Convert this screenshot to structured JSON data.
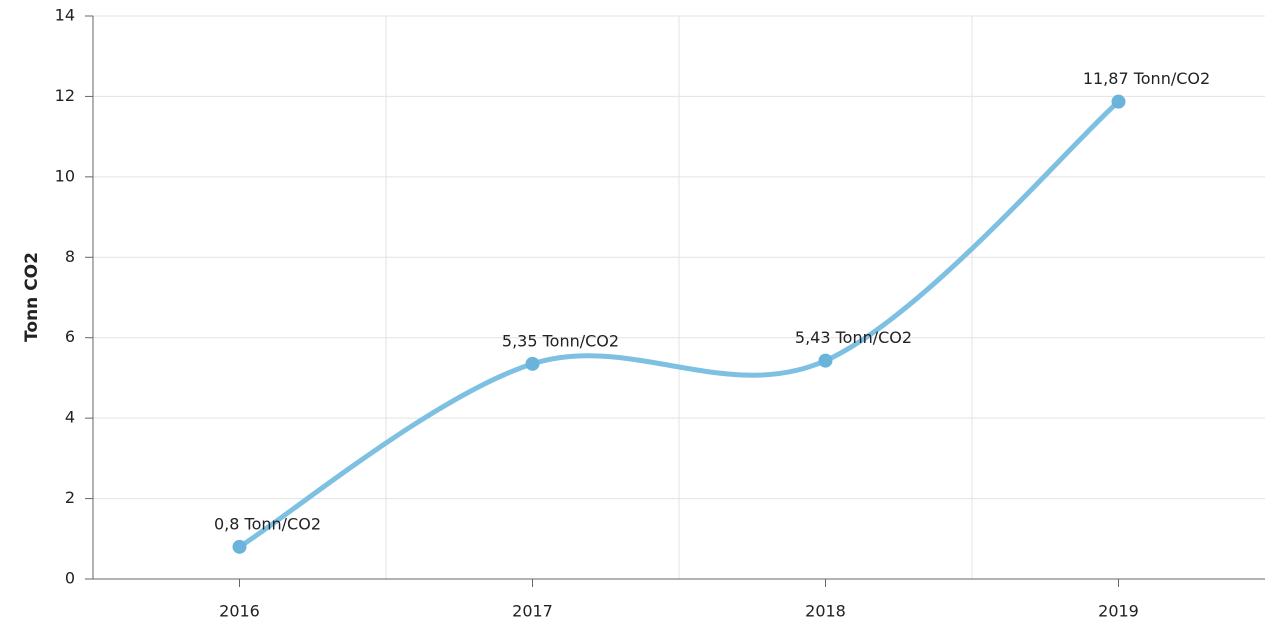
{
  "chart_data": {
    "type": "line",
    "ylabel": "Tonn CO2",
    "categories": [
      "2016",
      "2017",
      "2018",
      "2019"
    ],
    "series": [
      {
        "name": "Tonn CO2",
        "color": "#7ec0e1",
        "values": [
          0.8,
          5.35,
          5.43,
          11.87
        ],
        "value_labels": [
          "0,8 Tonn/CO2",
          "5,35 Tonn/CO2",
          "5,43 Tonn/CO2",
          "11,87 Tonn/CO2"
        ]
      }
    ],
    "ylim": [
      0,
      14
    ],
    "yticks": [
      0,
      2,
      4,
      6,
      8,
      10,
      12,
      14
    ],
    "grid": true,
    "smooth": true
  }
}
